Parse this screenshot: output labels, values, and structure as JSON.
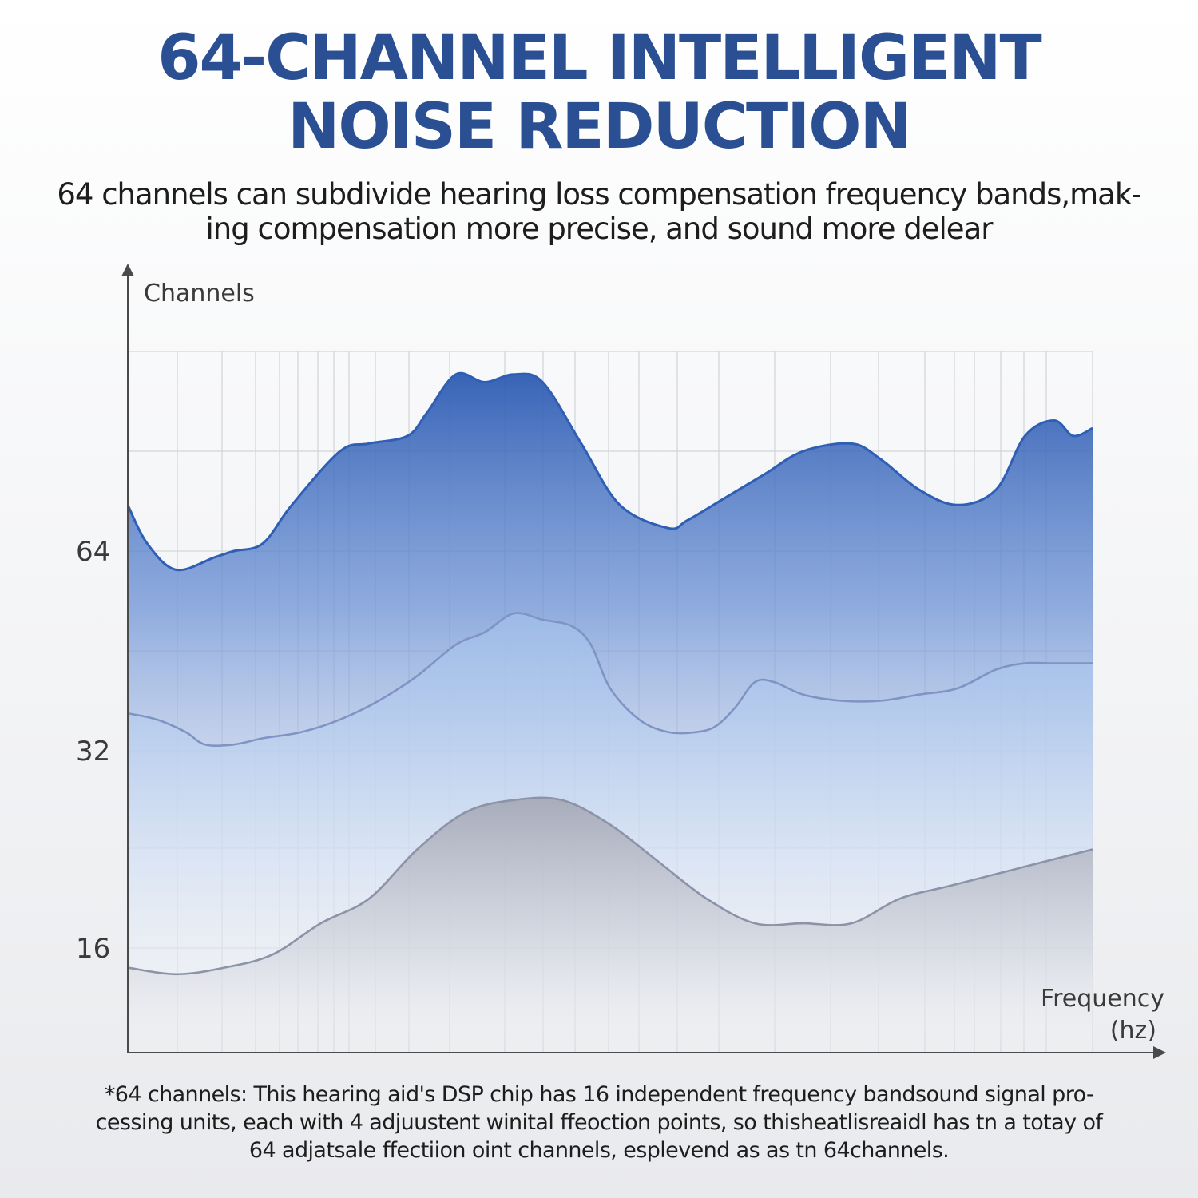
{
  "header": {
    "title_line1": "64-CHANNEL INTELLIGENT",
    "title_line2": "NOISE REDUCTION",
    "subtitle_line1": "64 channels can subdivide hearing loss compensation frequency bands,mak-",
    "subtitle_line2": "ing compensation more precise, and sound more delear"
  },
  "chart_data": {
    "type": "area",
    "ylabel": "Channels",
    "xlabel_line1": "Frequency",
    "xlabel_line2": "(hz)",
    "y_ticks": [
      16,
      32,
      64
    ],
    "grid": true,
    "x_range": [
      0,
      100
    ],
    "series": [
      {
        "color": "#2f5fb4",
        "x": [
          0,
          2,
          5,
          9,
          11,
          14,
          17,
          22,
          25,
          29,
          31,
          34,
          37,
          40,
          43,
          47,
          51,
          56,
          58,
          62,
          66,
          70,
          75,
          78,
          82,
          86,
          90,
          93,
          96,
          98,
          100
        ],
        "y": [
          70,
          65,
          61,
          63,
          64,
          65,
          70,
          77,
          78,
          79,
          82,
          87,
          86,
          87,
          86,
          78,
          70,
          67,
          68,
          71,
          74,
          77,
          78,
          76,
          72,
          70,
          72,
          79,
          81,
          79,
          80
        ]
      },
      {
        "color": "#8094c3",
        "x": [
          0,
          3,
          6,
          8,
          11,
          14,
          18,
          22,
          26,
          30,
          34,
          37,
          40,
          43,
          46,
          48,
          50,
          53,
          56,
          59,
          61,
          63,
          65,
          67,
          70,
          74,
          78,
          82,
          86,
          90,
          93,
          96,
          100
        ],
        "y": [
          38,
          37,
          35,
          33,
          33,
          34,
          35,
          37,
          40,
          44,
          49,
          51,
          54,
          53,
          52,
          49,
          42,
          37,
          35,
          35,
          36,
          39,
          43,
          43,
          41,
          40,
          40,
          41,
          42,
          45,
          46,
          46,
          46
        ]
      },
      {
        "color": "#8c93a8",
        "x": [
          0,
          5,
          10,
          15,
          20,
          25,
          30,
          35,
          40,
          45,
          50,
          55,
          60,
          65,
          70,
          75,
          80,
          85,
          90,
          95,
          100
        ],
        "y": [
          13,
          12,
          13,
          15,
          18,
          20,
          24,
          27,
          28,
          28,
          26,
          23,
          20,
          18,
          18,
          18,
          20,
          21,
          22,
          23,
          24
        ]
      }
    ]
  },
  "footnote": {
    "line1": "*64 channels: This hearing aid's DSP chip has 16 independent frequency bandsound signal pro-",
    "line2": "cessing units, each with 4 adjuustent winital ffeoction points, so thisheatlisreaidl has tn a totay of",
    "line3": "64 adjatsale ffectiion oint channels, esplevend as as tn 64channels."
  }
}
